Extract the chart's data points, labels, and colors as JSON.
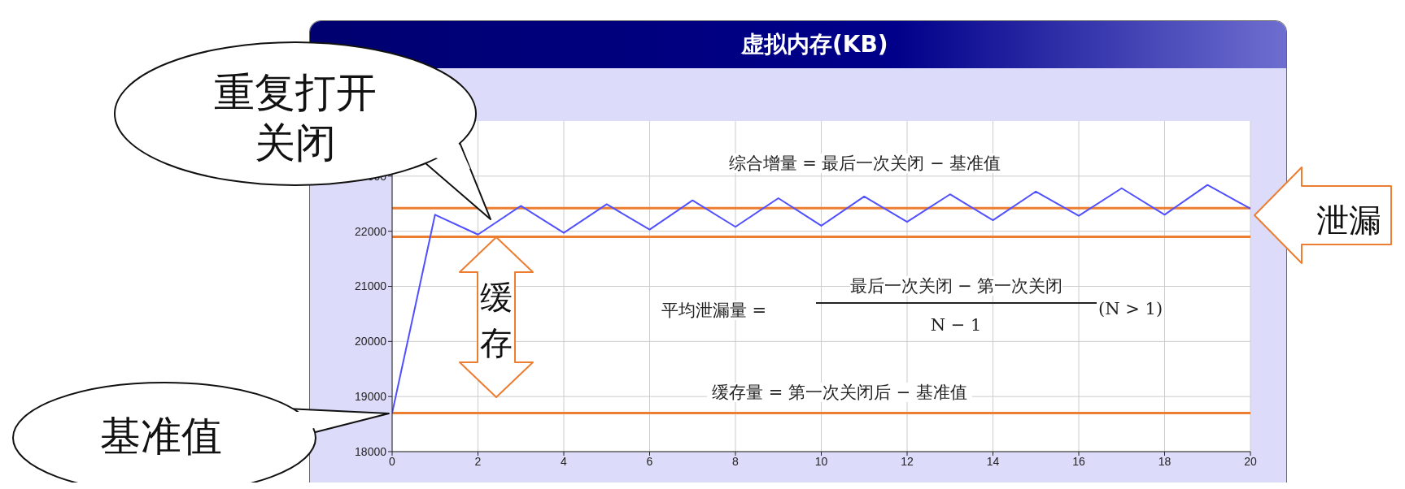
{
  "chart_data": {
    "type": "line",
    "title": "虚拟内存(KB)",
    "x": [
      0,
      1,
      2,
      3,
      4,
      5,
      6,
      7,
      8,
      9,
      10,
      11,
      12,
      13,
      14,
      15,
      16,
      17,
      18,
      19,
      20
    ],
    "series": [
      {
        "color": "#5050ff",
        "values": [
          18700,
          22300,
          21940,
          22460,
          21970,
          22490,
          22030,
          22560,
          22080,
          22600,
          22100,
          22630,
          22170,
          22670,
          22200,
          22720,
          22280,
          22780,
          22300,
          22840,
          22410
        ]
      }
    ],
    "xlim": [
      0,
      20
    ],
    "xticks": [
      0,
      2,
      4,
      6,
      8,
      10,
      12,
      14,
      16,
      18,
      20
    ],
    "ylim": [
      18000,
      24000
    ],
    "yticks": [
      18000,
      19000,
      20000,
      21000,
      22000,
      23000
    ],
    "grid": true,
    "ref_lines": [
      {
        "axis": "y",
        "value": 21900,
        "color": "#ed7d31"
      },
      {
        "axis": "y",
        "value": 18700,
        "color": "#ed7d31"
      },
      {
        "axis": "y",
        "value": 22420,
        "color": "#ed7d31"
      }
    ],
    "annotations": [
      "重复打开关闭",
      "基准值",
      "泄漏",
      "缓存",
      "综合增量 = 最后一次关闭 − 基准值",
      "平均泄漏量 =",
      "最后一次关闭 − 第一次关闭",
      "N − 1",
      "(N > 1)",
      "缓存量 = 第一次关闭后 − 基准值"
    ]
  }
}
